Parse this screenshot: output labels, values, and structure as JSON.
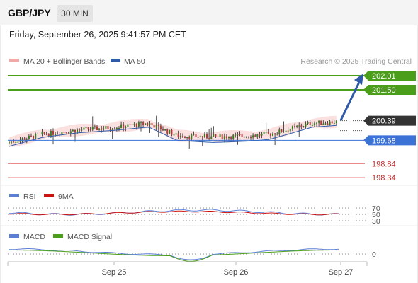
{
  "header": {
    "symbol": "GBP/JPY",
    "timeframe": "30 MIN",
    "datetime": "Friday, September 26, 2025 9:41:57 PM CET"
  },
  "legend": {
    "ma20": "MA 20 + Bollinger Bands",
    "ma50": "MA 50",
    "credit": "Research © 2025 Trading Central"
  },
  "colors": {
    "up": "#3a7d1e",
    "down": "#b23a3a",
    "bollinger": "#f4a7a7",
    "ma50": "#2e5aa8",
    "green_level": "#4a9e1a",
    "blue_level": "#3a72d6",
    "red_level": "#e87a7a",
    "current": "#333333",
    "rsi": "#5b7fd6",
    "rsi_ma": "#cc1111",
    "macd": "#5b7fd6",
    "macd_signal": "#4a9e1a"
  },
  "chart_data": {
    "type": "candlestick",
    "symbol": "GBP/JPY",
    "interval": "30 MIN",
    "x_labels": [
      "Sep 25",
      "Sep 26",
      "Sep 27"
    ],
    "y_range": [
      198.2,
      202.2
    ],
    "levels": [
      {
        "value": 202.01,
        "label": "202.01",
        "kind": "resistance"
      },
      {
        "value": 201.5,
        "label": "201.50",
        "kind": "resistance"
      },
      {
        "value": 200.39,
        "label": "200.39",
        "kind": "current"
      },
      {
        "value": 199.68,
        "label": "199.68",
        "kind": "pivot"
      },
      {
        "value": 198.84,
        "label": "198.84",
        "kind": "support"
      },
      {
        "value": 198.34,
        "label": "198.34",
        "kind": "support"
      }
    ],
    "rsi": {
      "name": "RSI",
      "ma_name": "9MA",
      "levels": [
        "70",
        "50",
        "30"
      ]
    },
    "macd": {
      "name": "MACD",
      "signal_name": "MACD Signal",
      "zero_label": "0"
    }
  }
}
